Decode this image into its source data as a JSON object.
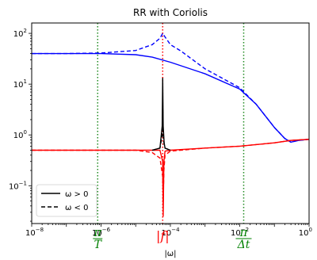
{
  "chart_data": {
    "type": "line",
    "title": "RR with Coriolis",
    "xlabel": "|ω|",
    "ylabel": "",
    "xscale": "log",
    "yscale": "log",
    "xlim": [
      1e-08,
      1
    ],
    "ylim": [
      0.018,
      160
    ],
    "x_ticks": [
      {
        "value": 1e-08,
        "base": "10",
        "exp": "−8"
      },
      {
        "value": 1e-06,
        "base": "10",
        "exp": "−6"
      },
      {
        "value": 0.0001,
        "base": "10",
        "exp": "−4"
      },
      {
        "value": 0.01,
        "base": "10",
        "exp": "−2"
      },
      {
        "value": 1,
        "base": "10",
        "exp": "0"
      }
    ],
    "y_ticks": [
      {
        "value": 0.1,
        "base": "10",
        "exp": "−1"
      },
      {
        "value": 1,
        "base": "10",
        "exp": "0"
      },
      {
        "value": 10,
        "base": "10",
        "exp": "1"
      },
      {
        "value": 100,
        "base": "10",
        "exp": "2"
      }
    ],
    "grid": false,
    "vlines": [
      {
        "x": 8e-07,
        "color": "#228B22",
        "style": "dotted",
        "label_num": "π",
        "label_den": "T",
        "label_color": "#008000"
      },
      {
        "x": 6e-05,
        "color": "#ff0000",
        "style": "dotted",
        "label": "|f|",
        "label_color": "#ff0000"
      },
      {
        "x": 0.013,
        "color": "#228B22",
        "style": "dotted",
        "label_num": "π",
        "label_den": "Δt",
        "label_color": "#008000"
      }
    ],
    "series": [
      {
        "color": "#0000ff",
        "dash": "solid",
        "x": [
          1e-08,
          1e-07,
          1e-06,
          1e-05,
          3e-05,
          0.0001,
          0.001,
          0.01,
          0.03,
          0.1,
          0.2,
          0.3,
          0.5,
          1
        ],
        "y": [
          40,
          40,
          40,
          38,
          34,
          27,
          16,
          8,
          4,
          1.4,
          0.85,
          0.72,
          0.78,
          0.82
        ]
      },
      {
        "color": "#0000ff",
        "dash": "dashed",
        "x": [
          1e-08,
          1e-07,
          1e-06,
          1e-05,
          3e-05,
          5e-05,
          6e-05,
          7e-05,
          0.0001,
          0.0002,
          0.001,
          0.01,
          0.03,
          0.1,
          0.2,
          0.3,
          0.5,
          1
        ],
        "y": [
          40,
          40,
          41,
          46,
          60,
          80,
          100,
          85,
          60,
          45,
          20,
          8.5,
          4,
          1.4,
          0.85,
          0.72,
          0.78,
          0.82
        ]
      },
      {
        "color": "#ff0000",
        "dash": "solid",
        "x": [
          1e-08,
          1e-06,
          1e-05,
          5e-05,
          6e-05,
          6.2e-05,
          6.5e-05,
          7e-05,
          0.0001,
          0.001,
          0.01,
          0.1,
          0.3,
          1
        ],
        "y": [
          0.5,
          0.5,
          0.5,
          0.5,
          0.3,
          0.025,
          0.3,
          0.48,
          0.5,
          0.55,
          0.6,
          0.7,
          0.78,
          0.82
        ]
      },
      {
        "color": "#ff0000",
        "dash": "dashed",
        "x": [
          1e-08,
          1e-06,
          1e-05,
          3e-05,
          5e-05,
          6e-05,
          6.2e-05,
          6.5e-05,
          7e-05,
          0.0001,
          0.001,
          0.01,
          0.1,
          0.3,
          1
        ],
        "y": [
          0.5,
          0.5,
          0.5,
          0.45,
          0.35,
          0.15,
          0.05,
          0.2,
          0.4,
          0.48,
          0.55,
          0.6,
          0.7,
          0.78,
          0.82
        ]
      },
      {
        "color": "#000000",
        "dash": "solid",
        "x": [
          3e-05,
          5e-05,
          5.8e-05,
          6e-05,
          6.2e-05,
          6.6e-05,
          7e-05,
          0.0001
        ],
        "y": [
          0.5,
          0.55,
          1.5,
          13,
          1.5,
          0.7,
          0.55,
          0.5
        ]
      },
      {
        "color": "#000000",
        "dash": "dashed",
        "x": [
          3e-05,
          5e-05,
          5.8e-05,
          6e-05,
          6.2e-05,
          6.6e-05,
          7e-05,
          0.0001
        ],
        "y": [
          0.5,
          0.55,
          1.0,
          4,
          1.0,
          0.65,
          0.55,
          0.5
        ]
      }
    ],
    "legend": {
      "placement": "lower-left",
      "entries": [
        {
          "label": "ω > 0",
          "dash": "solid",
          "color": "#000000"
        },
        {
          "label": "ω < 0",
          "dash": "dashed",
          "color": "#000000"
        }
      ]
    }
  }
}
